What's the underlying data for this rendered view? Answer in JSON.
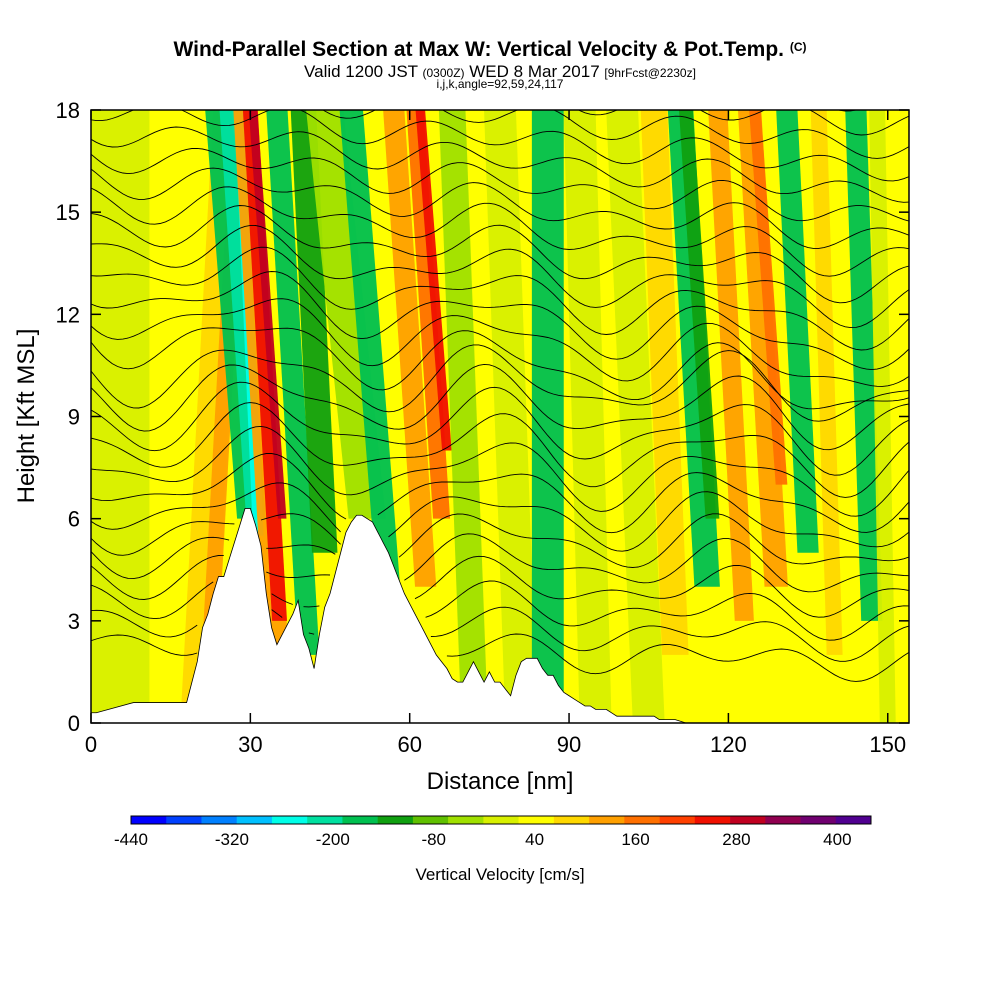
{
  "chart_data": {
    "type": "heatmap",
    "title": "Wind-Parallel Section at Max W: Vertical Velocity & Pot.Temp.",
    "title_mark": "(C)",
    "subtitle": {
      "valid_prefix": "Valid 1200 JST",
      "utc": "(0300Z)",
      "date": "WED 8 Mar 2017",
      "forecast": "[9hrFcst@2230z]"
    },
    "subtitle2": "i,j,k,angle=92,59,24,117",
    "xlabel": "Distance [nm]",
    "ylabel": "Height [Kft MSL]",
    "xlim": [
      0,
      154
    ],
    "ylim": [
      0,
      18
    ],
    "xticks": [
      "0",
      "30",
      "60",
      "90",
      "120",
      "150"
    ],
    "xtick_values": [
      0,
      30,
      60,
      90,
      120,
      150
    ],
    "yticks": [
      "0",
      "3",
      "6",
      "9",
      "12",
      "15",
      "18"
    ],
    "ytick_values": [
      0,
      3,
      6,
      9,
      12,
      15,
      18
    ],
    "colorbar": {
      "label": "Vertical Velocity [cm/s]",
      "tick_labels": [
        "-440",
        "-320",
        "-200",
        "-80",
        "40",
        "160",
        "280",
        "400"
      ],
      "tick_values": [
        -440,
        -320,
        -200,
        -80,
        40,
        160,
        280,
        400
      ],
      "range": [
        -440,
        440
      ],
      "colors": [
        "#0000ff",
        "#0040ff",
        "#0080ff",
        "#00c0ff",
        "#00ffe8",
        "#00e0a0",
        "#00c050",
        "#10a010",
        "#60c000",
        "#a0e000",
        "#d8f000",
        "#ffff00",
        "#ffd800",
        "#ffa000",
        "#ff7000",
        "#ff4000",
        "#f01000",
        "#c00020",
        "#900050",
        "#700070",
        "#500090"
      ]
    },
    "terrain_profile": {
      "x": [
        0,
        1,
        8,
        9,
        18,
        19,
        20,
        21,
        22,
        23,
        24,
        25,
        26,
        27,
        28,
        29,
        30,
        31,
        32,
        33,
        34,
        35,
        36,
        37,
        38,
        39,
        40,
        41,
        42,
        43,
        44,
        45,
        46,
        47,
        48,
        49,
        50,
        51,
        52,
        53,
        54,
        55,
        56,
        57,
        58,
        59,
        60,
        61,
        62,
        63,
        64,
        65,
        66,
        67,
        68,
        69,
        70,
        71,
        72,
        73,
        74,
        75,
        76,
        77,
        78,
        79,
        80,
        81,
        82,
        83,
        84,
        85,
        86,
        87,
        88,
        89,
        90,
        91,
        92,
        93,
        94,
        95,
        96,
        97,
        98,
        99,
        100,
        101,
        102,
        103,
        104,
        105,
        106,
        107,
        108,
        110,
        112,
        154
      ],
      "y": [
        0.3,
        0.3,
        0.6,
        0.6,
        0.6,
        1.2,
        1.8,
        2.8,
        3.2,
        3.8,
        4.3,
        4.3,
        4.8,
        5.3,
        5.8,
        6.3,
        6.3,
        5.8,
        5.2,
        3.8,
        2.8,
        2.3,
        2.6,
        2.9,
        3.2,
        3.6,
        2.6,
        2.2,
        1.6,
        2.6,
        3.4,
        3.8,
        4.4,
        5.0,
        5.6,
        5.9,
        6.1,
        6.1,
        6.0,
        5.9,
        5.6,
        5.3,
        5.0,
        4.6,
        4.2,
        3.8,
        3.5,
        3.2,
        2.9,
        2.6,
        2.3,
        2.0,
        1.8,
        1.6,
        1.3,
        1.2,
        1.2,
        1.5,
        1.8,
        1.5,
        1.2,
        1.5,
        1.2,
        1.2,
        1.0,
        0.8,
        1.4,
        1.8,
        1.9,
        1.9,
        1.9,
        1.6,
        1.4,
        1.4,
        1.1,
        0.9,
        0.8,
        0.7,
        0.6,
        0.5,
        0.5,
        0.4,
        0.4,
        0.4,
        0.3,
        0.2,
        0.2,
        0.2,
        0.2,
        0.2,
        0.2,
        0.2,
        0.2,
        0.1,
        0.1,
        0.1,
        0.0,
        0.0
      ]
    }
  }
}
